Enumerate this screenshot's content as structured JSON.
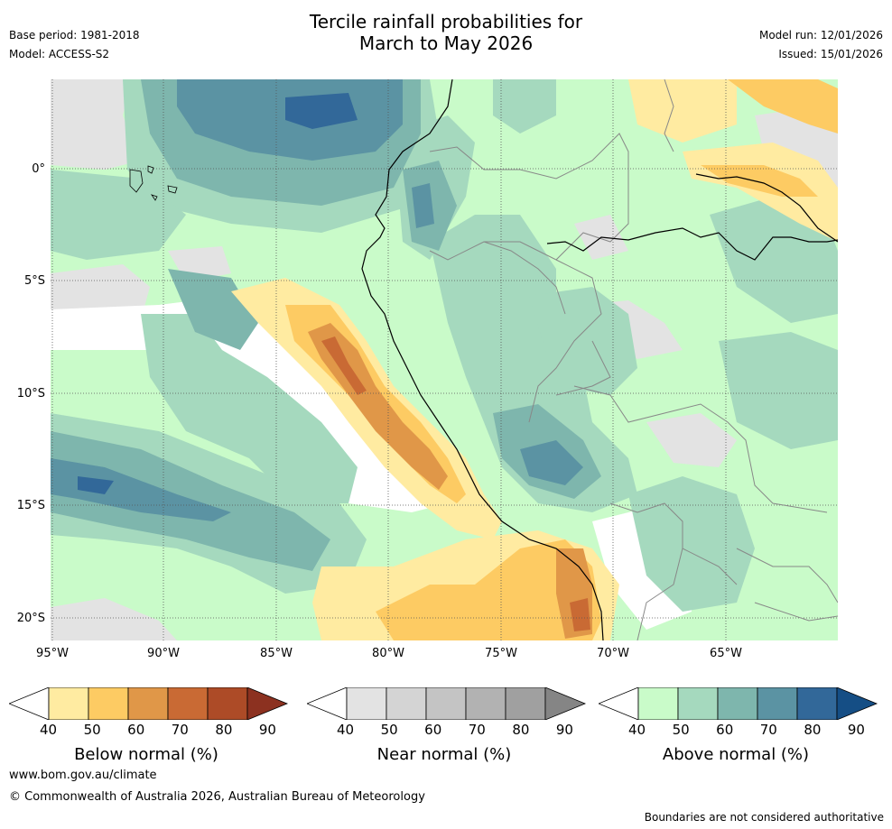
{
  "header": {
    "title_line1": "Tercile rainfall probabilities for",
    "title_line2": "March to May 2026",
    "base_period": "Base period: 1981-2018",
    "model": "Model: ACCESS-S2",
    "model_run": "Model run: 12/01/2026",
    "issued": "Issued: 15/01/2026"
  },
  "axes": {
    "lat_labels": [
      "0°",
      "5°S",
      "10°S",
      "15°S",
      "20°S"
    ],
    "lon_labels": [
      "95°W",
      "90°W",
      "85°W",
      "80°W",
      "75°W",
      "70°W",
      "65°W"
    ]
  },
  "legend": {
    "ticks": [
      "40",
      "50",
      "60",
      "70",
      "80",
      "90"
    ],
    "below": {
      "title": "Below normal (%)",
      "colors": [
        "#ffffff",
        "#ffeba1",
        "#fdcb63",
        "#e09748",
        "#c96a34",
        "#ad4b27",
        "#8c3120"
      ]
    },
    "near": {
      "title": "Near normal (%)",
      "colors": [
        "#ffffff",
        "#e3e3e3",
        "#d4d4d4",
        "#c4c4c4",
        "#b2b2b2",
        "#a0a0a0",
        "#858585"
      ]
    },
    "above": {
      "title": "Above normal (%)",
      "colors": [
        "#ffffff",
        "#c9fbc9",
        "#a5d9be",
        "#7eb6ad",
        "#5b93a3",
        "#326899",
        "#154e85"
      ]
    }
  },
  "footer": {
    "website": "www.bom.gov.au/climate",
    "copyright": "© Commonwealth of Australia 2026, Australian Bureau of Meteorology",
    "disclaimer": "Boundaries are not considered authoritative"
  }
}
